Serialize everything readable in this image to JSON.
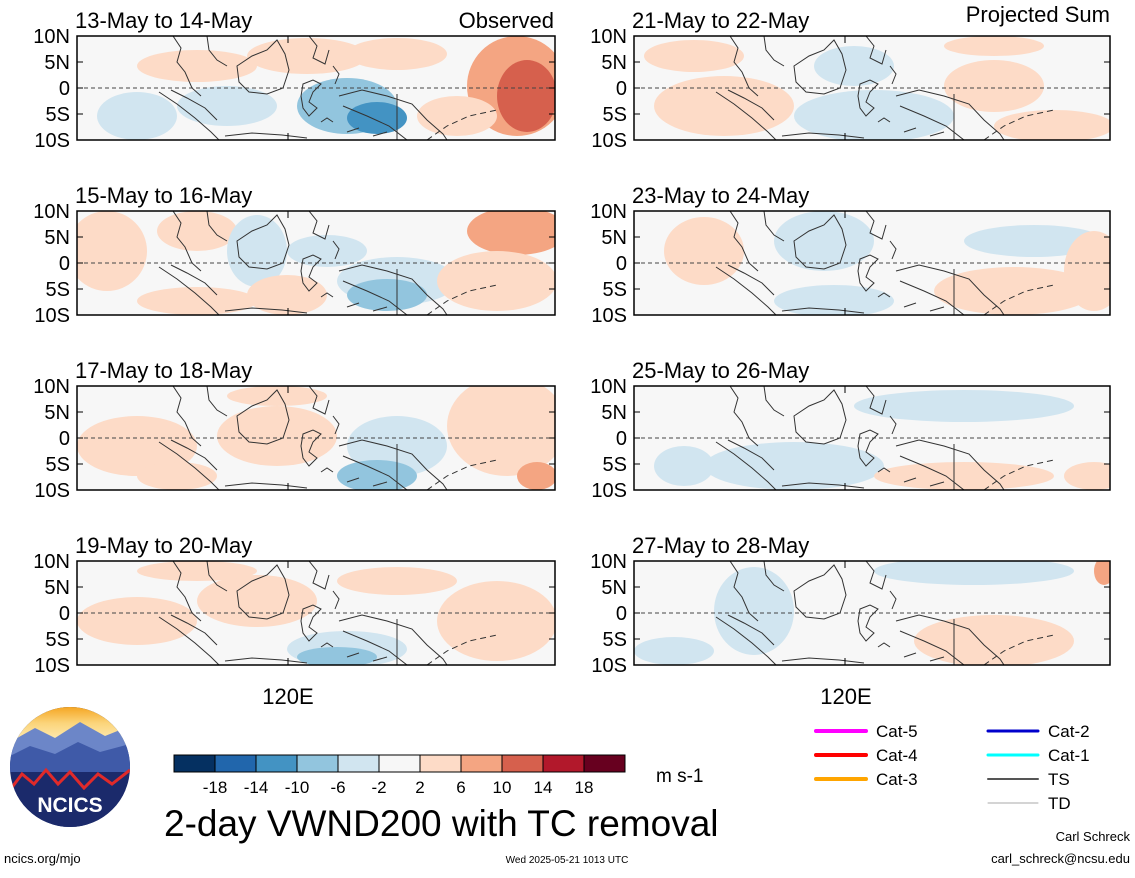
{
  "figure": {
    "title": "2-day VWND200 with TC removal",
    "observed_label": "Observed",
    "projected_label": "Projected Sum",
    "x_tick_label": "120E",
    "lat_ticks": [
      "10N",
      "5N",
      "0",
      "5S",
      "10S"
    ]
  },
  "panels_observed": [
    {
      "label": "13-May to 14-May"
    },
    {
      "label": "15-May to 16-May"
    },
    {
      "label": "17-May to 18-May"
    },
    {
      "label": "19-May to 20-May"
    }
  ],
  "panels_projected": [
    {
      "label": "21-May to 22-May"
    },
    {
      "label": "23-May to 24-May"
    },
    {
      "label": "25-May to 26-May"
    },
    {
      "label": "27-May to 28-May"
    }
  ],
  "colorbar": {
    "labels": [
      "-18",
      "-14",
      "-10",
      "-6",
      "-2",
      "2",
      "6",
      "10",
      "14",
      "18"
    ],
    "colors": [
      "#053061",
      "#2166ac",
      "#4393c3",
      "#92c5de",
      "#d1e5f0",
      "#f7f7f7",
      "#fddbc7",
      "#f4a582",
      "#d6604d",
      "#b2182b",
      "#67001f"
    ],
    "units": "m s-1"
  },
  "tc_legend": [
    {
      "label": "Cat-5",
      "color": "#ff00ff",
      "width": 4
    },
    {
      "label": "Cat-4",
      "color": "#ff0000",
      "width": 4
    },
    {
      "label": "Cat-3",
      "color": "#ffa500",
      "width": 4
    },
    {
      "label": "Cat-2",
      "color": "#0000cc",
      "width": 3
    },
    {
      "label": "Cat-1",
      "color": "#00ffff",
      "width": 3
    },
    {
      "label": "TS",
      "color": "#555555",
      "width": 2
    },
    {
      "label": "TD",
      "color": "#aaaaaa",
      "width": 1
    }
  ],
  "logo": {
    "text": "NCICS"
  },
  "footer": {
    "url": "ncics.org/mjo",
    "timestamp": "Wed 2025-05-21 1013 UTC",
    "author": "Carl Schreck",
    "email": "carl_schreck@ncsu.edu"
  },
  "chart_data": {
    "type": "heatmap",
    "title": "2-day VWND200 with TC removal",
    "units": "m s-1",
    "contour_levels": [
      -18,
      -14,
      -10,
      -6,
      -2,
      2,
      6,
      10,
      14,
      18
    ],
    "lat_range": [
      "10S",
      "10N"
    ],
    "x_tick": "120E",
    "panels": [
      {
        "label": "13-May to 14-May",
        "group": "Observed"
      },
      {
        "label": "15-May to 16-May",
        "group": "Observed"
      },
      {
        "label": "17-May to 18-May",
        "group": "Observed"
      },
      {
        "label": "19-May to 20-May",
        "group": "Observed"
      },
      {
        "label": "21-May to 22-May",
        "group": "Projected Sum"
      },
      {
        "label": "23-May to 24-May",
        "group": "Projected Sum"
      },
      {
        "label": "25-May to 26-May",
        "group": "Projected Sum"
      },
      {
        "label": "27-May to 28-May",
        "group": "Projected Sum"
      }
    ]
  }
}
